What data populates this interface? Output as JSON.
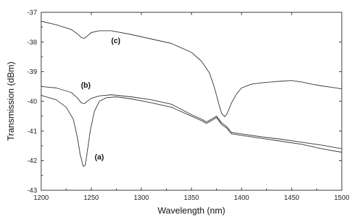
{
  "chart_data": {
    "type": "line",
    "title": "",
    "xlabel": "Wavelength (nm)",
    "ylabel": "Transmission (dBm)",
    "xlim": [
      1200,
      1500
    ],
    "ylim": [
      -43,
      -37
    ],
    "x_ticks": [
      1200,
      1250,
      1300,
      1350,
      1400,
      1450,
      1500
    ],
    "y_ticks": [
      -43,
      -42,
      -41,
      -40,
      -39,
      -38,
      -37
    ],
    "grid": false,
    "legend": "none",
    "series": [
      {
        "name": "(c)",
        "x": [
          1200,
          1215,
          1230,
          1236,
          1240,
          1243,
          1246,
          1250,
          1258,
          1270,
          1290,
          1310,
          1330,
          1350,
          1360,
          1368,
          1373,
          1377,
          1380,
          1383,
          1385,
          1387,
          1390,
          1395,
          1400,
          1410,
          1420,
          1430,
          1440,
          1450,
          1460,
          1470,
          1480,
          1490,
          1500
        ],
        "y": [
          -37.3,
          -37.42,
          -37.58,
          -37.72,
          -37.85,
          -37.88,
          -37.8,
          -37.68,
          -37.62,
          -37.62,
          -37.75,
          -37.9,
          -38.05,
          -38.35,
          -38.65,
          -39.05,
          -39.55,
          -40.05,
          -40.4,
          -40.52,
          -40.45,
          -40.3,
          -40.05,
          -39.75,
          -39.55,
          -39.42,
          -39.38,
          -39.35,
          -39.32,
          -39.3,
          -39.35,
          -39.42,
          -39.48,
          -39.53,
          -39.58
        ]
      },
      {
        "name": "(b)",
        "x": [
          1200,
          1215,
          1230,
          1236,
          1240,
          1243,
          1246,
          1250,
          1258,
          1270,
          1290,
          1310,
          1330,
          1350,
          1360,
          1365,
          1370,
          1375,
          1380,
          1385,
          1390,
          1400,
          1420,
          1440,
          1460,
          1480,
          1500
        ],
        "y": [
          -39.5,
          -39.55,
          -39.7,
          -39.88,
          -40.05,
          -40.08,
          -40.0,
          -39.9,
          -39.82,
          -39.78,
          -39.85,
          -39.95,
          -40.1,
          -40.45,
          -40.6,
          -40.7,
          -40.6,
          -40.5,
          -40.72,
          -40.85,
          -41.05,
          -41.1,
          -41.2,
          -41.28,
          -41.38,
          -41.48,
          -41.6
        ]
      },
      {
        "name": "(a)",
        "x": [
          1200,
          1215,
          1225,
          1232,
          1236,
          1239,
          1242,
          1244,
          1246,
          1249,
          1253,
          1258,
          1265,
          1275,
          1290,
          1310,
          1330,
          1350,
          1360,
          1365,
          1370,
          1375,
          1380,
          1385,
          1390,
          1400,
          1420,
          1440,
          1460,
          1480,
          1500
        ],
        "y": [
          -39.8,
          -39.95,
          -40.2,
          -40.6,
          -41.2,
          -41.8,
          -42.2,
          -42.15,
          -41.7,
          -41.0,
          -40.35,
          -40.0,
          -39.88,
          -39.85,
          -39.92,
          -40.05,
          -40.2,
          -40.5,
          -40.65,
          -40.75,
          -40.65,
          -40.55,
          -40.78,
          -40.9,
          -41.1,
          -41.15,
          -41.25,
          -41.35,
          -41.45,
          -41.6,
          -41.72
        ]
      }
    ]
  }
}
